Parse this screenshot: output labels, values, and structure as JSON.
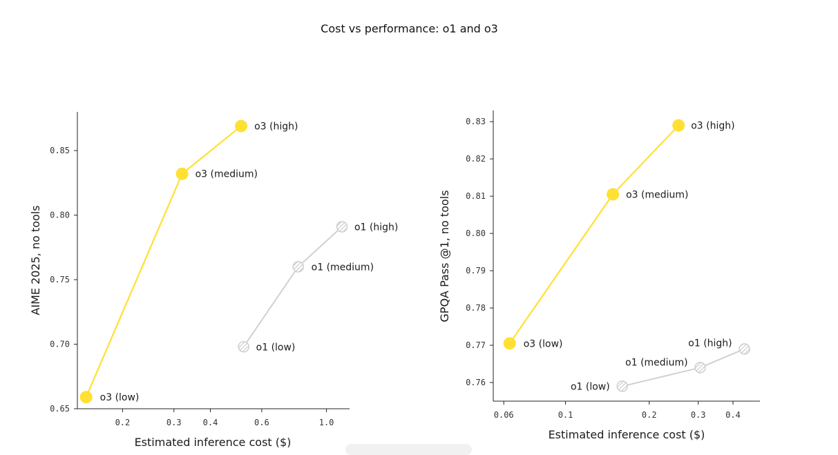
{
  "title": "Cost vs performance: o1 and o3",
  "colors": {
    "o3": "#FFE033",
    "o1": "#D0D0D0",
    "axis": "#222222"
  },
  "chart_data": [
    {
      "type": "scatter",
      "title": "",
      "xlabel": "Estimated inference cost ($)",
      "ylabel": "AIME 2025, no tools",
      "xscale": "log",
      "xlim": [
        0.14,
        1.2
      ],
      "ylim": [
        0.65,
        0.88
      ],
      "xticks": [
        0.2,
        0.3,
        0.4,
        0.6,
        1.0
      ],
      "xtick_labels": [
        "0.2",
        "0.3",
        "0.4",
        "0.6",
        "1.0"
      ],
      "yticks": [
        0.65,
        0.7,
        0.75,
        0.8,
        0.85
      ],
      "ytick_labels": [
        "0.65",
        "0.70",
        "0.75",
        "0.80",
        "0.85"
      ],
      "series": [
        {
          "name": "o3",
          "points": [
            {
              "label": "o3 (low)",
              "x": 0.15,
              "y": 0.659
            },
            {
              "label": "o3 (medium)",
              "x": 0.32,
              "y": 0.832
            },
            {
              "label": "o3 (high)",
              "x": 0.51,
              "y": 0.869
            }
          ]
        },
        {
          "name": "o1",
          "points": [
            {
              "label": "o1 (low)",
              "x": 0.52,
              "y": 0.698
            },
            {
              "label": "o1 (medium)",
              "x": 0.8,
              "y": 0.76
            },
            {
              "label": "o1 (high)",
              "x": 1.13,
              "y": 0.791
            }
          ]
        }
      ]
    },
    {
      "type": "scatter",
      "title": "",
      "xlabel": "Estimated inference cost ($)",
      "ylabel": "GPQA Pass @1, no tools",
      "xscale": "log",
      "xlim": [
        0.055,
        0.5
      ],
      "ylim": [
        0.755,
        0.833
      ],
      "xticks": [
        0.06,
        0.1,
        0.2,
        0.3,
        0.4
      ],
      "xtick_labels": [
        "0.06",
        "0.1",
        "0.2",
        "0.3",
        "0.4"
      ],
      "yticks": [
        0.76,
        0.77,
        0.78,
        0.79,
        0.8,
        0.81,
        0.82,
        0.83
      ],
      "ytick_labels": [
        "0.76",
        "0.77",
        "0.78",
        "0.79",
        "0.80",
        "0.81",
        "0.82",
        "0.83"
      ],
      "series": [
        {
          "name": "o3",
          "points": [
            {
              "label": "o3 (low)",
              "x": 0.063,
              "y": 0.7705
            },
            {
              "label": "o3 (medium)",
              "x": 0.148,
              "y": 0.8105
            },
            {
              "label": "o3 (high)",
              "x": 0.255,
              "y": 0.829
            }
          ]
        },
        {
          "name": "o1",
          "points": [
            {
              "label": "o1 (low)",
              "x": 0.16,
              "y": 0.759
            },
            {
              "label": "o1 (medium)",
              "x": 0.305,
              "y": 0.764
            },
            {
              "label": "o1 (high)",
              "x": 0.44,
              "y": 0.769
            }
          ]
        }
      ]
    }
  ]
}
